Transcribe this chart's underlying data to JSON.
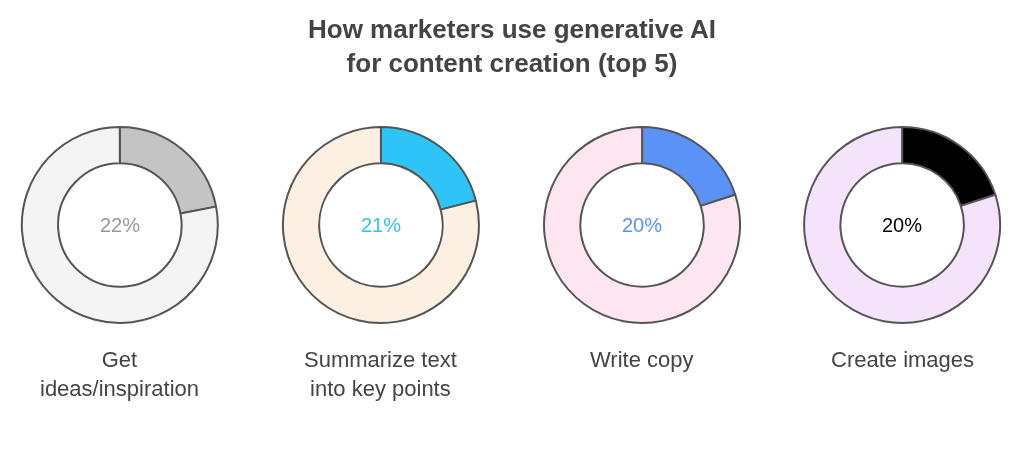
{
  "chart_data": [
    {
      "type": "donut",
      "title": "How marketers use generative AI\nfor content creation (top 5)",
      "xlabel": "Get\nideas/inspiration",
      "categories": [
        null,
        null
      ],
      "values": [
        22,
        78
      ],
      "colors": [
        "#c4c4c4",
        "#f4f4f4"
      ],
      "annotations": [
        "22%"
      ]
    },
    {
      "type": "donut",
      "xlabel": "Summarize text\ninto key points",
      "categories": [
        null,
        null
      ],
      "values": [
        21,
        79
      ],
      "colors": [
        "#2ec4f7",
        "#fdf0e3"
      ],
      "annotations": [
        "21%"
      ]
    },
    {
      "type": "donut",
      "xlabel": "Write copy",
      "categories": [
        null,
        null
      ],
      "values": [
        20,
        80
      ],
      "colors": [
        "#5a92f6",
        "#fde6f0"
      ],
      "annotations": [
        "20%"
      ]
    },
    {
      "type": "donut",
      "xlabel": "Create images",
      "categories": [
        null,
        null
      ],
      "values": [
        20,
        80
      ],
      "colors": [
        "#000000",
        "#f5e3fc"
      ],
      "annotations": [
        "20%"
      ]
    }
  ]
}
